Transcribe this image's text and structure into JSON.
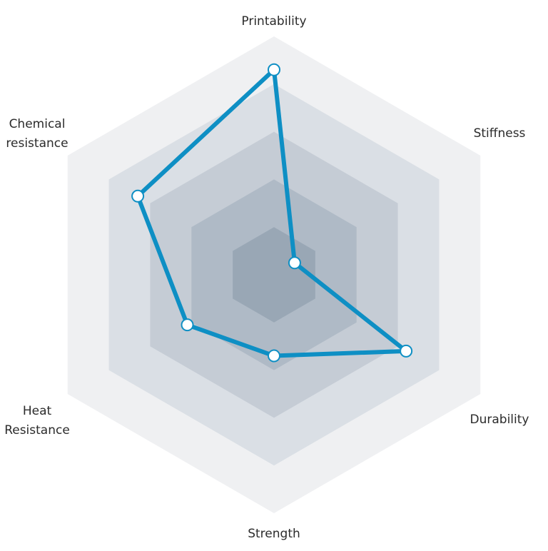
{
  "chart_data": {
    "type": "radar",
    "title": "",
    "axes": [
      {
        "key": "printability",
        "lines": [
          "Printability"
        ]
      },
      {
        "key": "stiffness",
        "lines": [
          "Stiffness"
        ]
      },
      {
        "key": "durability",
        "lines": [
          "Durability"
        ]
      },
      {
        "key": "strength",
        "lines": [
          "Strength"
        ]
      },
      {
        "key": "heat_resistance",
        "lines": [
          "Heat",
          "Resistance"
        ]
      },
      {
        "key": "chemical_resistance",
        "lines": [
          "Chemical",
          "resistance"
        ]
      }
    ],
    "rings": 5,
    "range": [
      0,
      5
    ],
    "series": [
      {
        "values": [
          4.3,
          0.5,
          3.2,
          1.7,
          2.1,
          3.3
        ]
      }
    ],
    "colors": {
      "line": "#0e8fc4",
      "marker_fill": "#ffffff",
      "ring_fills": [
        "#eff0f2",
        "#dadfe5",
        "#c5ccd5",
        "#afbac6",
        "#99a7b5"
      ],
      "label": "#2b2b2b"
    }
  }
}
